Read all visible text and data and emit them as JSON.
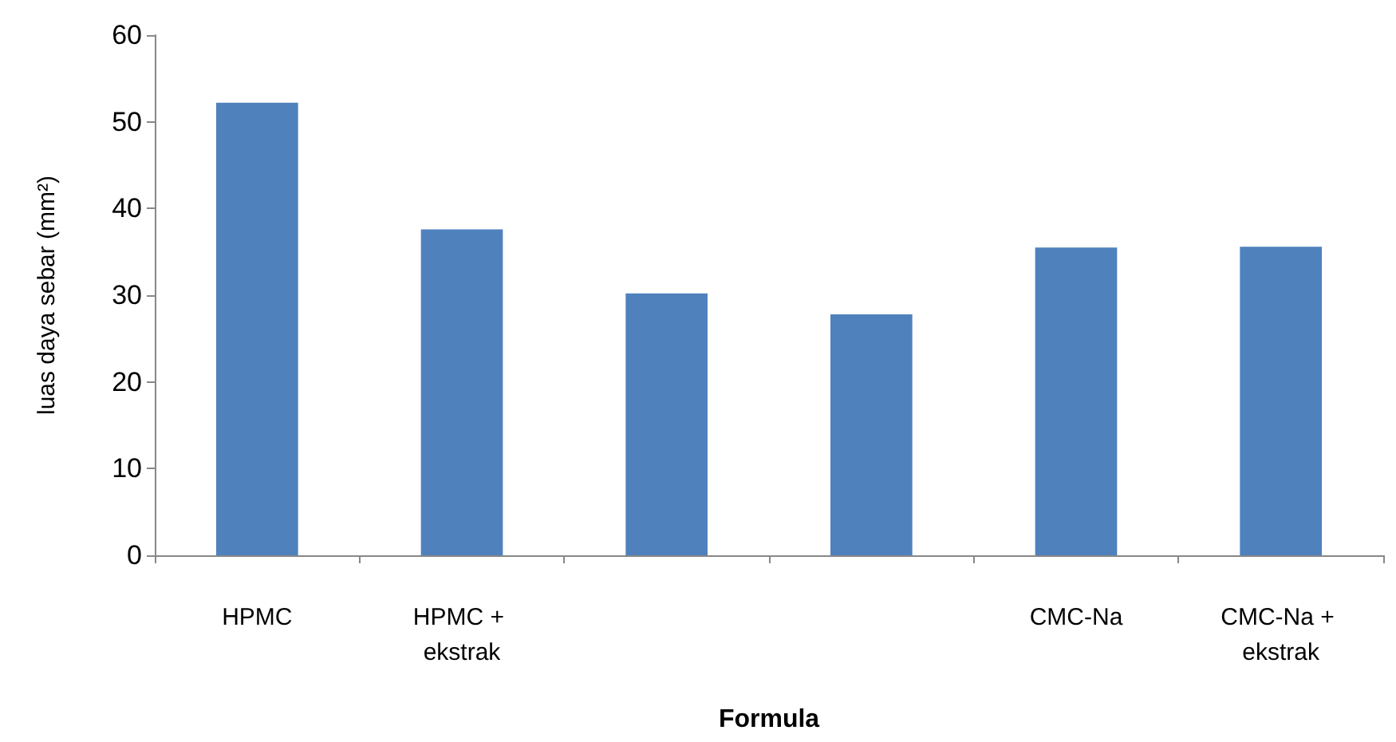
{
  "chart_data": {
    "type": "bar",
    "xlabel": "Formula",
    "ylabel": "luas daya sebar (mm²)",
    "categories": [
      "HPMC",
      "HPMC + ekstrak",
      null,
      null,
      "CMC-Na",
      "CMC-Na + ekstrak"
    ],
    "values": [
      52.2,
      37.6,
      30.2,
      27.8,
      35.5,
      35.6
    ],
    "color": "#4f81bd",
    "ylim": [
      0,
      60
    ],
    "yticks": [
      0,
      10,
      20,
      30,
      40,
      50,
      60
    ],
    "grid": false
  }
}
